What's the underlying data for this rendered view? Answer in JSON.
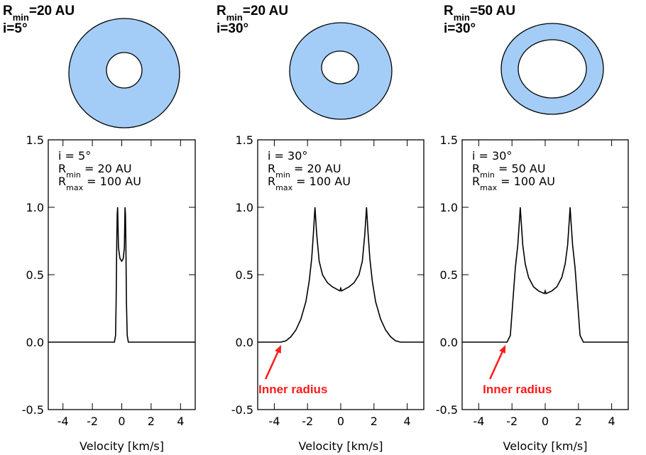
{
  "chart_data": [
    {
      "type": "line",
      "title": {
        "text": "R",
        "sub": "min",
        "tail": "=20 AU"
      },
      "subtitle": "i=5°",
      "notes": [
        {
          "text": "i =  5°"
        },
        {
          "text": "R",
          "sub": "min",
          "tail": " =   20 AU"
        },
        {
          "text": "R",
          "sub": "max",
          "tail": " = 100 AU"
        }
      ],
      "xlabel": "Velocity [km/s]",
      "x": [
        -5,
        -0.5,
        -0.42,
        -0.38,
        -0.34,
        -0.31,
        -0.28,
        -0.22,
        -0.12,
        0,
        0.1,
        0.18,
        0.22,
        0.25,
        0.28,
        0.32,
        0.37,
        0.45,
        5
      ],
      "values": [
        0,
        0,
        0.05,
        0.3,
        0.75,
        0.95,
        1.0,
        0.7,
        0.62,
        0.6,
        0.62,
        0.7,
        1.0,
        0.95,
        0.75,
        0.3,
        0.05,
        0,
        0
      ],
      "color": "#000000",
      "xlim": [
        -5,
        5
      ],
      "ylim": [
        -0.5,
        1.5
      ],
      "xticks": [
        -4,
        -2,
        0,
        2,
        4
      ],
      "yticks": [
        -0.5,
        {
          "value": 0,
          "label": "0.0"
        },
        0.5,
        {
          "value": 1,
          "label": "1.0"
        },
        1.5
      ]
    },
    {
      "type": "line",
      "title": {
        "text": "R",
        "sub": "min",
        "tail": "=20 AU"
      },
      "subtitle": "i=30°",
      "notes": [
        {
          "text": "i =  30°"
        },
        {
          "text": "R",
          "sub": "min",
          "tail": " =   20 AU"
        },
        {
          "text": "R",
          "sub": "max",
          "tail": " = 100 AU"
        }
      ],
      "xlabel": "Velocity [km/s]",
      "annotation": {
        "text": "Inner radius",
        "x": -3.5,
        "y": 0,
        "color": "#ff1a1a"
      },
      "x": [
        -5,
        -3.6,
        -3.3,
        -3.0,
        -2.7,
        -2.4,
        -2.1,
        -1.9,
        -1.75,
        -1.65,
        -1.55,
        -1.45,
        -1.3,
        -1.1,
        -0.8,
        -0.5,
        -0.2,
        -0.05,
        0,
        0.05,
        0.2,
        0.5,
        0.8,
        1.1,
        1.3,
        1.45,
        1.55,
        1.65,
        1.75,
        1.9,
        2.1,
        2.4,
        2.7,
        3.0,
        3.3,
        3.6,
        5
      ],
      "values": [
        0,
        0,
        0.01,
        0.04,
        0.09,
        0.17,
        0.3,
        0.45,
        0.62,
        0.8,
        1.0,
        0.8,
        0.6,
        0.5,
        0.44,
        0.41,
        0.39,
        0.38,
        0.4,
        0.38,
        0.39,
        0.41,
        0.44,
        0.5,
        0.6,
        0.8,
        1.0,
        0.8,
        0.62,
        0.45,
        0.3,
        0.17,
        0.09,
        0.04,
        0.01,
        0,
        0
      ],
      "color": "#000000",
      "xlim": [
        -5,
        5
      ],
      "ylim": [
        -0.5,
        1.5
      ],
      "xticks": [
        -4,
        -2,
        0,
        2,
        4
      ],
      "yticks": [
        -0.5,
        {
          "value": 0,
          "label": "0.0"
        },
        0.5,
        {
          "value": 1,
          "label": "1.0"
        },
        1.5
      ]
    },
    {
      "type": "line",
      "title": {
        "text": "R",
        "sub": "min",
        "tail": "=50 AU"
      },
      "subtitle": "i=30°",
      "notes": [
        {
          "text": "i =  30°"
        },
        {
          "text": "R",
          "sub": "min",
          "tail": " =   50 AU"
        },
        {
          "text": "R",
          "sub": "max",
          "tail": " = 100 AU"
        }
      ],
      "xlabel": "Velocity [km/s]",
      "annotation": {
        "text": "Inner radius",
        "x": -2.3,
        "y": 0,
        "color": "#ff1a1a"
      },
      "x": [
        -5,
        -2.3,
        -2.1,
        -1.95,
        -1.8,
        -1.65,
        -1.55,
        -1.5,
        -1.45,
        -1.35,
        -1.2,
        -1.0,
        -0.7,
        -0.4,
        -0.05,
        0,
        0.05,
        0.4,
        0.7,
        1.0,
        1.2,
        1.35,
        1.45,
        1.5,
        1.55,
        1.65,
        1.8,
        1.95,
        2.1,
        2.3,
        5
      ],
      "values": [
        0,
        0,
        0.05,
        0.3,
        0.55,
        0.72,
        0.9,
        1.0,
        0.9,
        0.72,
        0.58,
        0.48,
        0.41,
        0.38,
        0.36,
        0.38,
        0.36,
        0.38,
        0.41,
        0.48,
        0.58,
        0.72,
        0.9,
        1.0,
        0.9,
        0.72,
        0.55,
        0.3,
        0.05,
        0,
        0
      ],
      "color": "#000000",
      "xlim": [
        -5,
        5
      ],
      "ylim": [
        -0.5,
        1.5
      ],
      "xticks": [
        -4,
        -2,
        0,
        2,
        4
      ],
      "yticks": [
        -0.5,
        {
          "value": 0,
          "label": "0.0"
        },
        0.5,
        {
          "value": 1,
          "label": "1.0"
        },
        1.5
      ]
    }
  ]
}
